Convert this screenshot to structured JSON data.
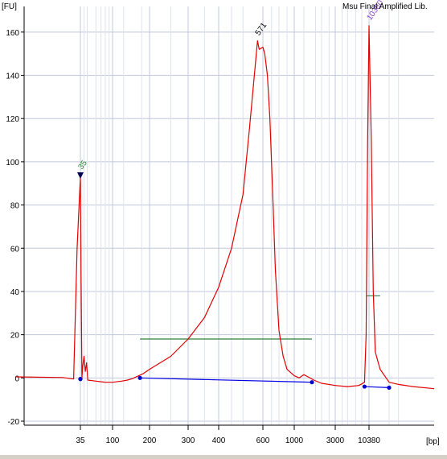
{
  "title": "Msu Final Amplified Lib.",
  "colors": {
    "background": "#ffffff",
    "grid": "#c0c8dc",
    "trace": "#e00000",
    "baseline": "#0000e0",
    "marker_points": "#0000cc",
    "region_bar": "#2f7f3f",
    "peak_label_lower": "#2a8f2a",
    "peak_label_main": "#000000",
    "peak_label_upper": "#8844cc",
    "lower_marker_triangle": "#000050"
  },
  "chart_data": {
    "type": "line",
    "title": "Msu Final Amplified Lib.",
    "xlabel": "[bp]",
    "ylabel": "[FU]",
    "ylim": [
      -20,
      170
    ],
    "y_ticks": [
      -20,
      0,
      20,
      40,
      60,
      80,
      100,
      120,
      140,
      160
    ],
    "x_ticks": [
      "35",
      "100",
      "200",
      "300",
      "400",
      "600",
      "1000",
      "3000",
      "10380"
    ],
    "grid": true,
    "peaks": [
      {
        "size_bp": 35,
        "label": "35",
        "fu": 94
      },
      {
        "size_bp": 571,
        "label": "571",
        "fu": 156
      },
      {
        "size_bp": 10380,
        "label": "10380",
        "fu": 163
      }
    ],
    "series": [
      {
        "values": [
          [
            20,
            0.5
          ],
          [
            30,
            0.2
          ],
          [
            33,
            -0.5
          ],
          [
            34,
            60
          ],
          [
            35,
            93
          ],
          [
            36,
            45
          ],
          [
            37,
            0
          ],
          [
            38,
            5
          ],
          [
            40,
            10
          ],
          [
            42,
            3
          ],
          [
            44,
            7
          ],
          [
            46,
            -1
          ],
          [
            60,
            -1.5
          ],
          [
            80,
            -2
          ],
          [
            100,
            -2
          ],
          [
            120,
            -1.5
          ],
          [
            135,
            -1.0
          ],
          [
            150,
            -0.3
          ],
          [
            180,
            2
          ],
          [
            200,
            4
          ],
          [
            250,
            10
          ],
          [
            300,
            18
          ],
          [
            350,
            28
          ],
          [
            400,
            42
          ],
          [
            450,
            60
          ],
          [
            500,
            85
          ],
          [
            530,
            115
          ],
          [
            560,
            145
          ],
          [
            571,
            156
          ],
          [
            580,
            152
          ],
          [
            600,
            153
          ],
          [
            620,
            150
          ],
          [
            650,
            140
          ],
          [
            680,
            120
          ],
          [
            700,
            100
          ],
          [
            720,
            80
          ],
          [
            750,
            50
          ],
          [
            800,
            22
          ],
          [
            850,
            10
          ],
          [
            900,
            4
          ],
          [
            1000,
            1
          ],
          [
            1100,
            0
          ],
          [
            1200,
            1.5
          ],
          [
            1300,
            0.5
          ],
          [
            1500,
            -1
          ],
          [
            2000,
            -2.5
          ],
          [
            3000,
            -3.5
          ],
          [
            5000,
            -4
          ],
          [
            8000,
            -3.5
          ],
          [
            9500,
            -2
          ],
          [
            9800,
            20
          ],
          [
            10100,
            110
          ],
          [
            10380,
            163
          ],
          [
            10600,
            110
          ],
          [
            10800,
            40
          ],
          [
            11000,
            12
          ],
          [
            11500,
            4
          ],
          [
            12500,
            -2
          ],
          [
            15000,
            -3
          ],
          [
            20000,
            -4
          ],
          [
            30000,
            -5
          ]
        ]
      }
    ],
    "baselines": [
      [
        [
          35,
          -0.5
        ],
        [
          35,
          -0.5
        ]
      ],
      [
        [
          170,
          0
        ],
        [
          1400,
          -2
        ]
      ],
      [
        [
          9500,
          -4
        ],
        [
          12500,
          -4.5
        ]
      ]
    ],
    "region_markers": [
      {
        "from_bp": 170,
        "to_bp": 1400,
        "fu": 18
      },
      {
        "from_bp": 9900,
        "to_bp": 11500,
        "fu": 38
      }
    ]
  }
}
